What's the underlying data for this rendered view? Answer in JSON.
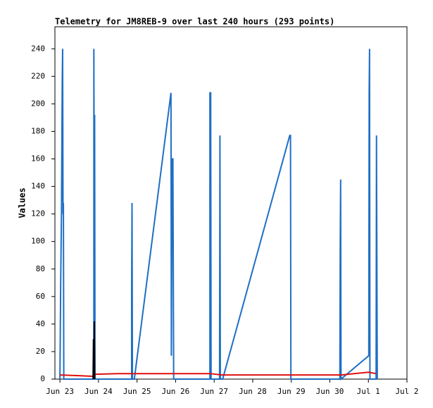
{
  "chart_data": {
    "type": "line",
    "title": "Telemetry for JM8REB-9 over last 240 hours (293 points)",
    "y_label": "Values",
    "xlim": [
      -0.13,
      9
    ],
    "xticks": [
      {
        "value": 0,
        "label": "Jun 23"
      },
      {
        "value": 1,
        "label": "Jun 24"
      },
      {
        "value": 2,
        "label": "Jun 25"
      },
      {
        "value": 3,
        "label": "Jun 26"
      },
      {
        "value": 4,
        "label": "Jun 27"
      },
      {
        "value": 5,
        "label": "Jun 28"
      },
      {
        "value": 6,
        "label": "Jun 29"
      },
      {
        "value": 7,
        "label": "Jun 30"
      },
      {
        "value": 8,
        "label": "Jul 1"
      },
      {
        "value": 9,
        "label": "Jul 2"
      }
    ],
    "ylim": [
      0,
      256
    ],
    "yticks": [
      0,
      20,
      40,
      60,
      80,
      100,
      120,
      140,
      160,
      180,
      200,
      220,
      240
    ],
    "grid": false,
    "series": [
      {
        "color": "#1f6fc5",
        "x": [
          0,
          0.02,
          0.04,
          0.05,
          0.06,
          0.07,
          0.08,
          0.09,
          0.1,
          0.88,
          0.88,
          0.89,
          0.9,
          0.91,
          1.86,
          1.86,
          1.87,
          1.88,
          1.93,
          2.88,
          2.89,
          2.91,
          2.93,
          2.95,
          3.89,
          3.89,
          3.91,
          3.92,
          4.14,
          4.15,
          4.16,
          4.22,
          5.96,
          5.98,
          5.99,
          7.26,
          7.27,
          7.28,
          7.29,
          8.01,
          8.02,
          8.03,
          8.04,
          8.2,
          8.21,
          8.22,
          8.23
        ],
        "values": [
          0,
          70,
          120,
          170,
          216,
          240,
          120,
          128,
          0,
          0,
          240,
          120,
          192,
          0,
          0,
          65,
          128,
          0,
          0,
          208,
          17,
          160,
          160,
          0,
          0,
          208,
          208,
          0,
          0,
          177,
          0,
          0,
          177,
          177,
          0,
          0,
          97,
          145,
          0,
          17,
          208,
          240,
          0,
          0,
          177,
          88,
          0
        ]
      },
      {
        "color": "#e01010",
        "x": [
          0,
          0.5,
          0.88,
          0.92,
          1.5,
          2.9,
          3.9,
          4.2,
          6,
          7.3,
          8,
          8.2
        ],
        "values": [
          3,
          2.5,
          2,
          3.5,
          4,
          4,
          4,
          3,
          3,
          3,
          5,
          4
        ]
      },
      {
        "color": "#000000",
        "x": [
          0.86,
          0.87,
          0.88,
          0.89,
          0.9
        ],
        "values": [
          0,
          29,
          0,
          42,
          0
        ]
      }
    ]
  }
}
